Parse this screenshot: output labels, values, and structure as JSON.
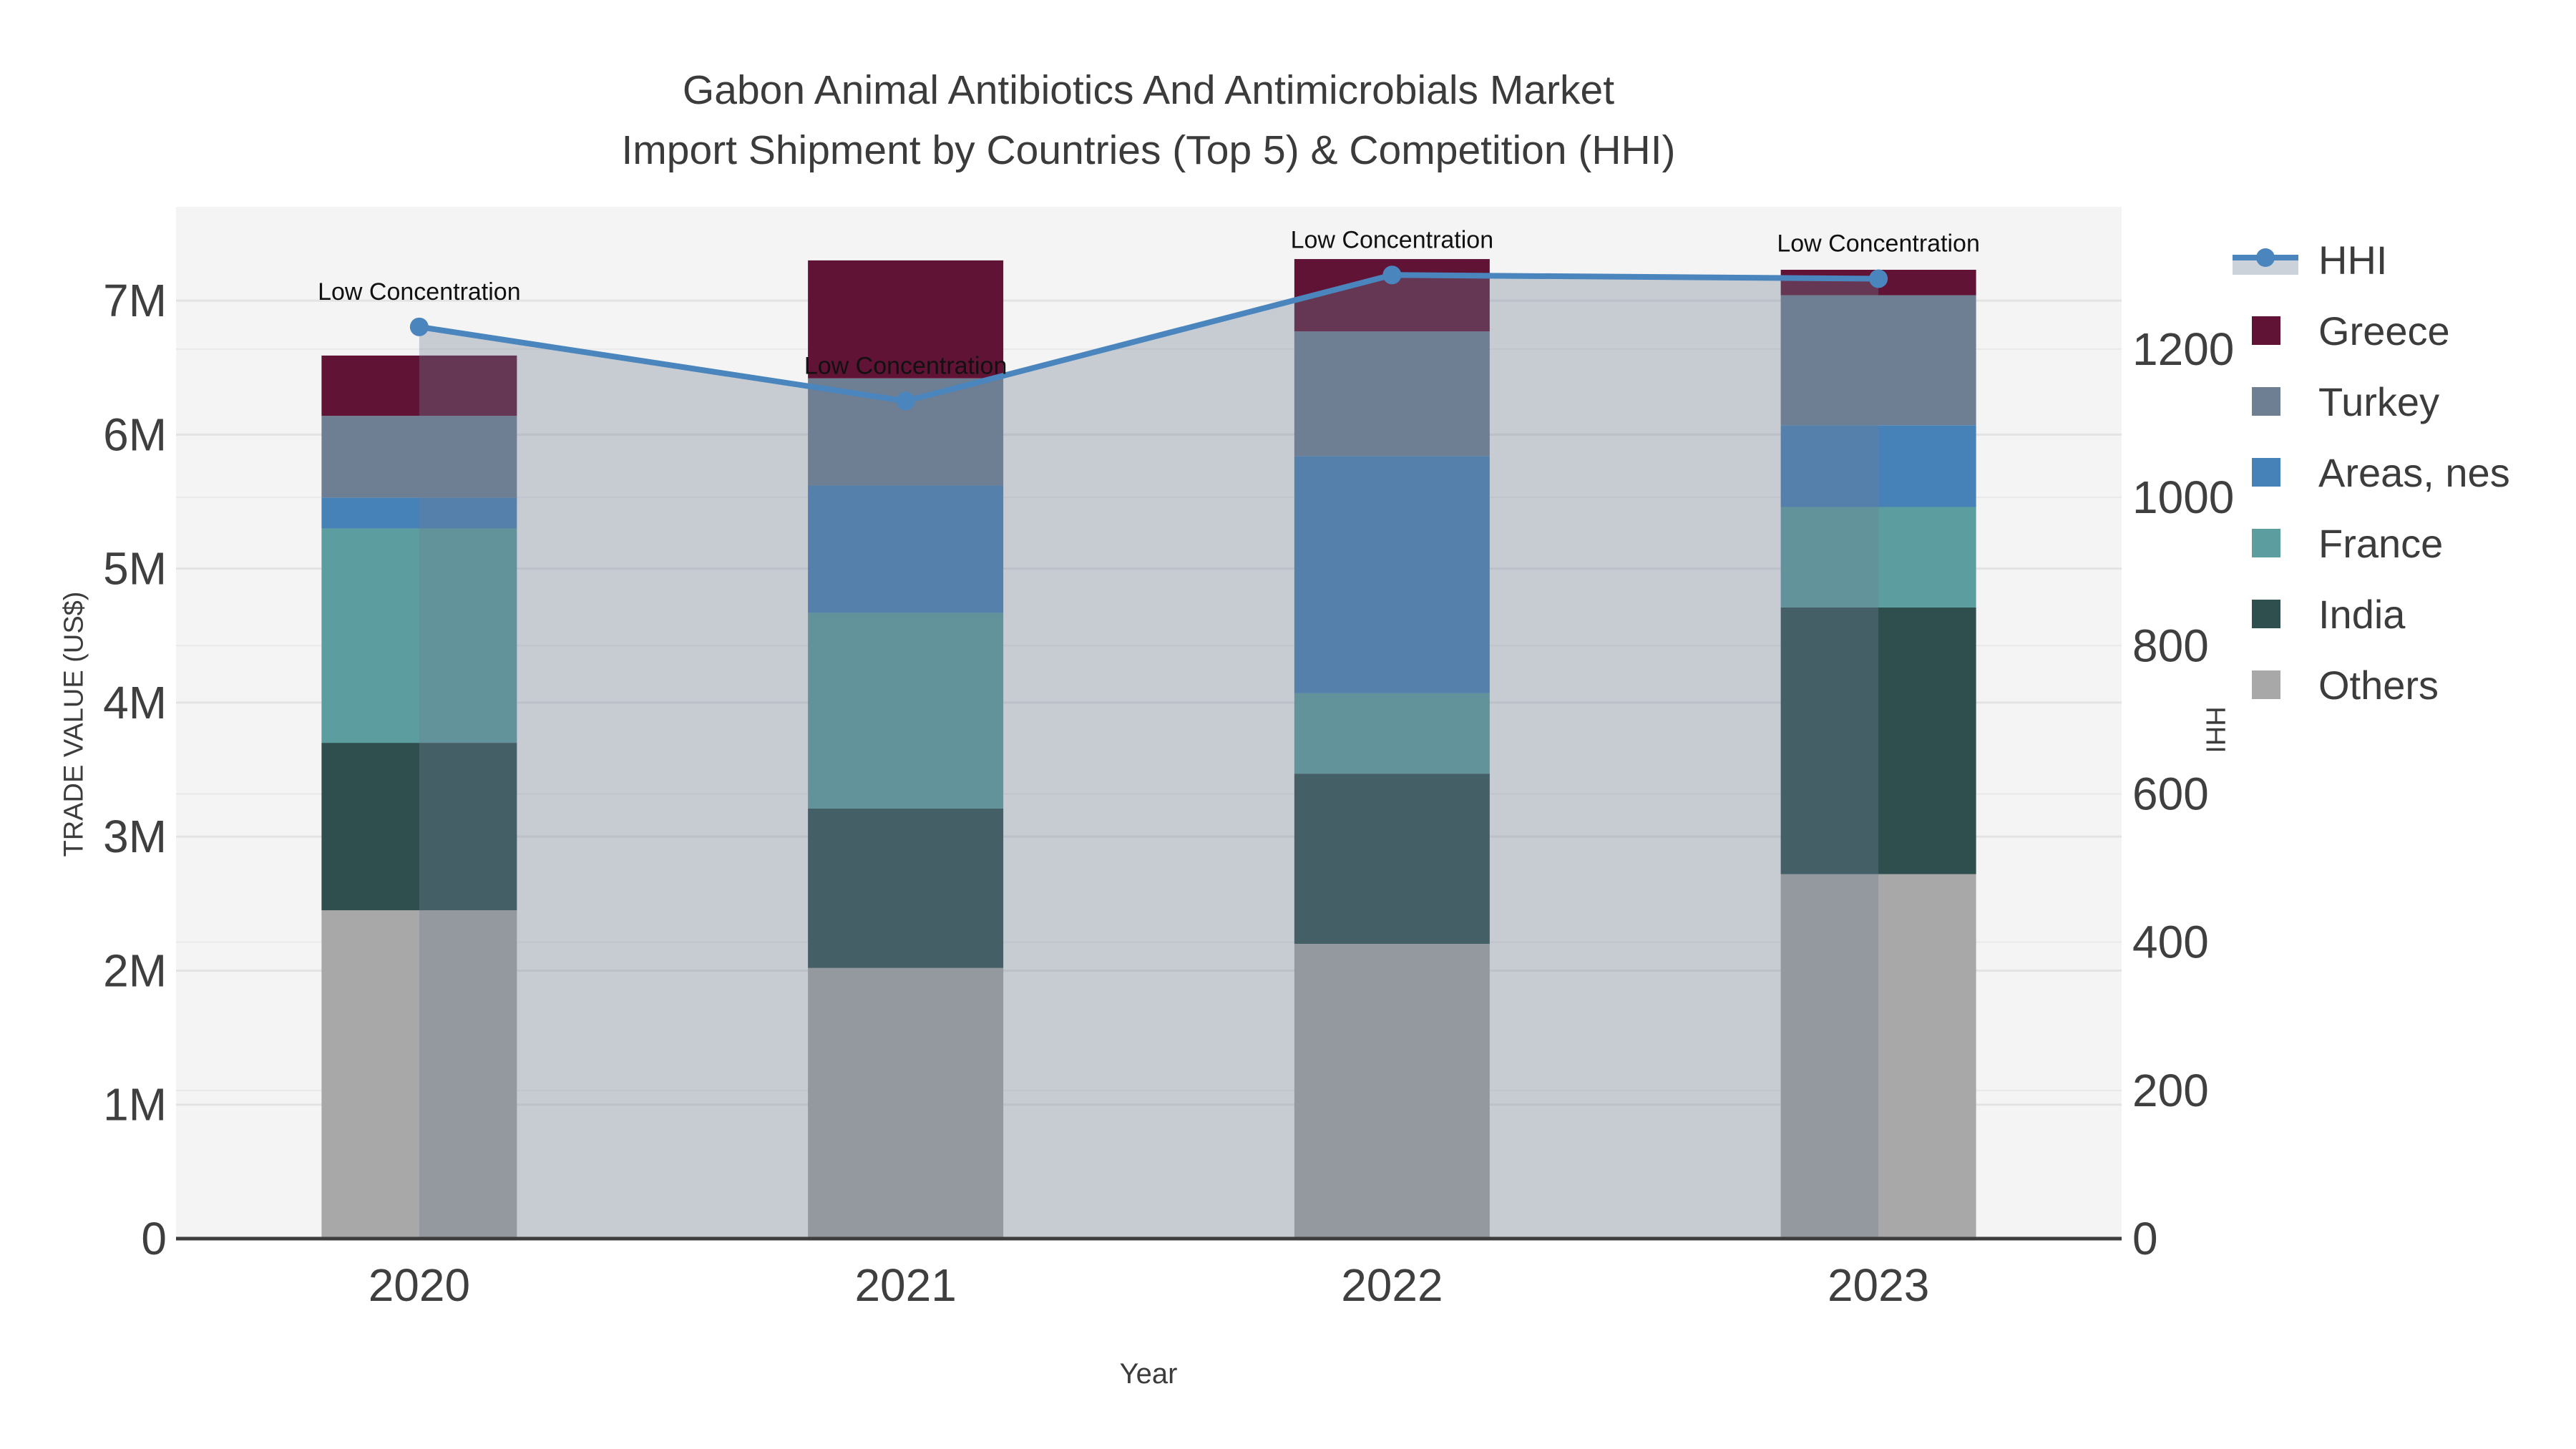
{
  "title": {
    "line1": "Gabon Animal Antibiotics And Antimicrobials Market",
    "line2": "Import Shipment by Countries (Top 5) & Competition (HHI)"
  },
  "axes": {
    "x": {
      "title": "Year"
    },
    "y_left": {
      "title": "TRADE VALUE (US$)"
    },
    "y_right": {
      "title": "HHI"
    }
  },
  "legend": [
    {
      "label": "HHI",
      "type": "line",
      "color": "#4a86bd"
    },
    {
      "label": "Greece",
      "type": "square",
      "color": "#611336"
    },
    {
      "label": "Turkey",
      "type": "square",
      "color": "#6e7f93"
    },
    {
      "label": "Areas, nes",
      "type": "square",
      "color": "#4682b8"
    },
    {
      "label": "France",
      "type": "square",
      "color": "#5c9ea0"
    },
    {
      "label": "India",
      "type": "square",
      "color": "#2e4f4e"
    },
    {
      "label": "Others",
      "type": "square",
      "color": "#a8a8a8"
    }
  ],
  "chart_data": {
    "type": "combo-stacked-bar-line",
    "title": "Gabon Animal Antibiotics And Antimicrobials Market — Import Shipment by Countries (Top 5) & Competition (HHI)",
    "categories": [
      "2020",
      "2021",
      "2022",
      "2023"
    ],
    "xlabel": "Year",
    "ylabel_left": "TRADE VALUE (US$)",
    "ylabel_right": "HHI",
    "y_left_ticks": [
      "0",
      "1M",
      "2M",
      "3M",
      "4M",
      "5M",
      "6M",
      "7M"
    ],
    "y_left_tick_values": [
      0,
      1000000,
      2000000,
      3000000,
      4000000,
      5000000,
      6000000,
      7000000
    ],
    "y_left_max": 7700000,
    "y_right_ticks": [
      "0",
      "200",
      "400",
      "600",
      "800",
      "1000",
      "1200"
    ],
    "y_right_tick_values": [
      0,
      200,
      400,
      600,
      800,
      1000,
      1200
    ],
    "y_right_max": 1392,
    "bar_series": [
      {
        "name": "Others",
        "color": "#a8a8a8",
        "values": [
          2450000,
          2020000,
          2200000,
          2720000
        ]
      },
      {
        "name": "India",
        "color": "#2e4f4e",
        "values": [
          1250000,
          1190000,
          1270000,
          1990000
        ]
      },
      {
        "name": "France",
        "color": "#5c9ea0",
        "values": [
          1600000,
          1460000,
          600000,
          750000
        ]
      },
      {
        "name": "Areas, nes",
        "color": "#4682b8",
        "values": [
          230000,
          950000,
          1770000,
          610000
        ]
      },
      {
        "name": "Turkey",
        "color": "#6e7f93",
        "values": [
          610000,
          800000,
          930000,
          970000
        ]
      },
      {
        "name": "Greece",
        "color": "#611336",
        "values": [
          450000,
          880000,
          540000,
          190000
        ]
      }
    ],
    "line_series": {
      "name": "HHI",
      "color": "#4a86bd",
      "fill_color": "rgba(110,127,147,0.34)",
      "values": [
        1230,
        1130,
        1300,
        1295
      ],
      "point_annotations": [
        "Low Concentration",
        "Low Concentration",
        "Low Concentration",
        "Low Concentration"
      ]
    },
    "legend_position": "right",
    "grid": true,
    "plot_background": "#f4f4f5"
  }
}
